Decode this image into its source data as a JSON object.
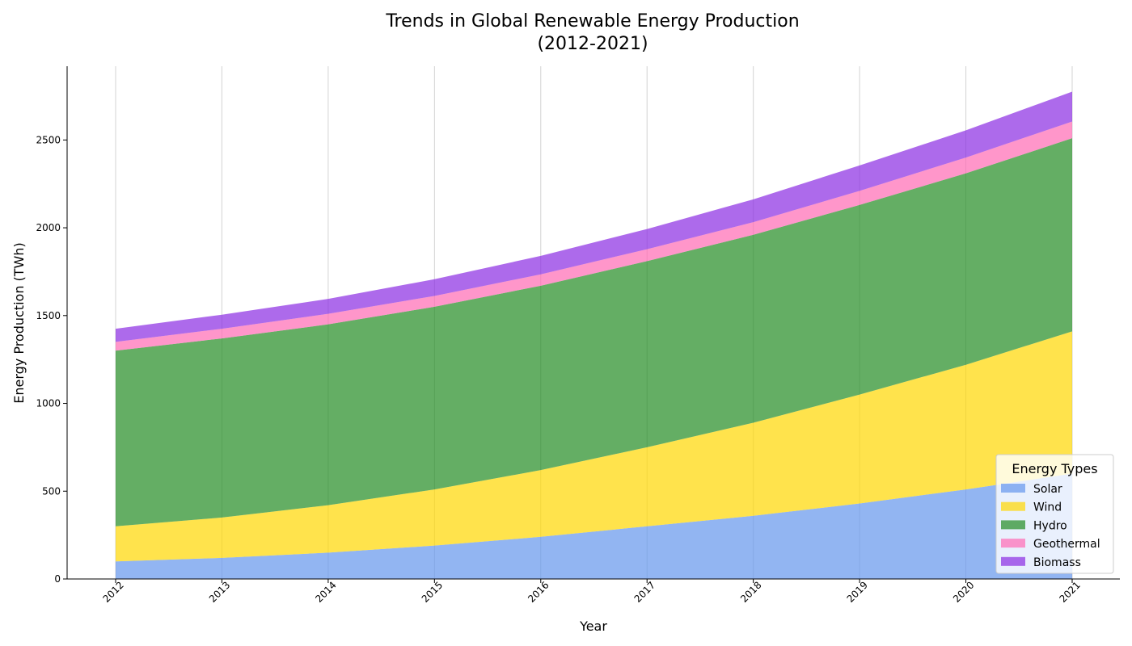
{
  "chart_data": {
    "type": "area",
    "stacked": true,
    "title_lines": [
      "Trends in Global Renewable Energy Production",
      "(2012-2021)"
    ],
    "xlabel": "Year",
    "ylabel": "Energy Production (TWh)",
    "x": [
      2012,
      2013,
      2014,
      2015,
      2016,
      2017,
      2018,
      2019,
      2020,
      2021
    ],
    "ylim": [
      0,
      2920
    ],
    "yticks": [
      0,
      500,
      1000,
      1500,
      2000,
      2500
    ],
    "grid": "vertical",
    "legend": {
      "title": "Energy Types",
      "placement": "lower-right"
    },
    "series": [
      {
        "name": "Solar",
        "color": "#6495ED",
        "values": [
          100,
          120,
          150,
          190,
          240,
          300,
          360,
          430,
          510,
          600
        ]
      },
      {
        "name": "Wind",
        "color": "#FFD700",
        "values": [
          200,
          230,
          270,
          320,
          380,
          450,
          530,
          620,
          710,
          810
        ]
      },
      {
        "name": "Hydro",
        "color": "#228B22",
        "values": [
          1000,
          1020,
          1030,
          1040,
          1050,
          1060,
          1070,
          1080,
          1090,
          1100
        ]
      },
      {
        "name": "Geothermal",
        "color": "#FF69B4",
        "values": [
          50,
          55,
          60,
          62,
          65,
          68,
          72,
          80,
          90,
          95
        ]
      },
      {
        "name": "Biomass",
        "color": "#8A2BE2",
        "values": [
          75,
          80,
          85,
          95,
          105,
          115,
          130,
          145,
          155,
          170
        ]
      }
    ]
  }
}
